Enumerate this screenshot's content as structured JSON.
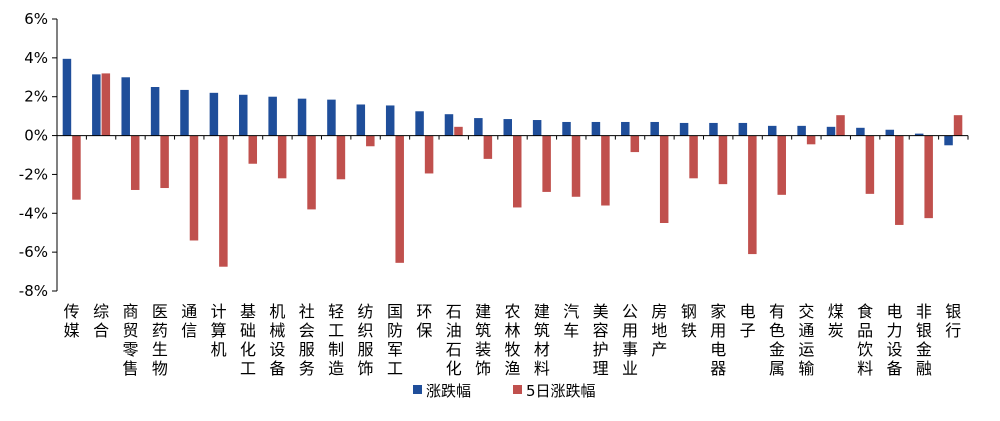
{
  "chart_data": {
    "type": "bar",
    "title": "",
    "xlabel": "",
    "ylabel": "",
    "ylim": [
      -8,
      6
    ],
    "yticks": [
      -8,
      -6,
      -4,
      -2,
      0,
      2,
      4,
      6
    ],
    "ytick_labels": [
      "-8%",
      "-6%",
      "-4%",
      "-2%",
      "0%",
      "2%",
      "4%",
      "6%"
    ],
    "grid": false,
    "legend_position": "bottom-center",
    "categories": [
      "传媒",
      "综合",
      "商贸零售",
      "医药生物",
      "通信",
      "计算机",
      "基础化工",
      "机械设备",
      "社会服务",
      "轻工制造",
      "纺织服饰",
      "国防军工",
      "环保",
      "石油石化",
      "建筑装饰",
      "农林牧渔",
      "建筑材料",
      "汽车",
      "美容护理",
      "公用事业",
      "房地产",
      "钢铁",
      "家用电器",
      "电子",
      "有色金属",
      "交通运输",
      "煤炭",
      "食品饮料",
      "电力设备",
      "非银金融",
      "银行"
    ],
    "series": [
      {
        "name": "涨跌幅",
        "color": "#1F4E9A",
        "values": [
          3.95,
          3.15,
          3.0,
          2.5,
          2.35,
          2.2,
          2.1,
          2.0,
          1.9,
          1.85,
          1.6,
          1.55,
          1.25,
          1.1,
          0.9,
          0.85,
          0.8,
          0.7,
          0.7,
          0.7,
          0.7,
          0.65,
          0.65,
          0.65,
          0.5,
          0.5,
          0.45,
          0.4,
          0.3,
          0.1,
          -0.5
        ]
      },
      {
        "name": "5日涨跌幅",
        "color": "#C0504D",
        "values": [
          -3.3,
          3.2,
          -2.8,
          -2.7,
          -5.4,
          -6.75,
          -1.45,
          -2.2,
          -3.8,
          -2.25,
          -0.55,
          -6.55,
          -1.95,
          0.45,
          -1.2,
          -3.7,
          -2.9,
          -3.15,
          -3.6,
          -0.85,
          -4.5,
          -2.2,
          -2.5,
          -6.1,
          -3.05,
          -0.45,
          1.05,
          -3.0,
          -4.6,
          -4.25,
          1.05
        ]
      }
    ]
  }
}
